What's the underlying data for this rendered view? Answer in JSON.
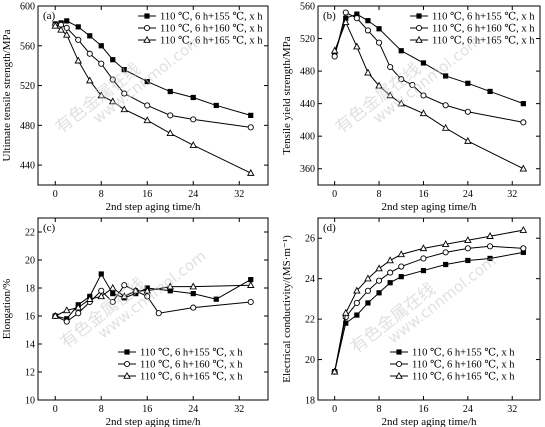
{
  "watermark": {
    "cn": "有色金属在线",
    "url": "www.cnnmol.com"
  },
  "chart_data": [
    {
      "type": "line",
      "panel_label": "(a)",
      "xlabel": "2nd step aging time/h",
      "ylabel": "Ultimate tensile strength/MPa",
      "xlim": [
        -3,
        37
      ],
      "ylim": [
        420,
        600
      ],
      "xticks": [
        0,
        8,
        16,
        24,
        32
      ],
      "yticks": [
        440,
        480,
        520,
        560,
        600
      ],
      "legend_position": "top-right",
      "series": [
        {
          "name": "110 ℃, 6 h+155 ℃, x h",
          "marker": "square",
          "x": [
            0,
            1,
            2,
            4,
            6,
            8,
            10,
            12,
            16,
            20,
            24,
            28,
            34
          ],
          "y": [
            582,
            583,
            585,
            579,
            570,
            560,
            546,
            536,
            524,
            514,
            508,
            500,
            490
          ]
        },
        {
          "name": "110 ℃, 6 h+160 ℃, x h",
          "marker": "circle",
          "x": [
            0,
            1,
            2,
            4,
            6,
            8,
            10,
            12,
            16,
            20,
            24,
            34
          ],
          "y": [
            581,
            581,
            578,
            566,
            552,
            542,
            526,
            512,
            500,
            490,
            486,
            478
          ]
        },
        {
          "name": "110 ℃, 6 h+165 ℃, x h",
          "marker": "triangle",
          "x": [
            0,
            1,
            2,
            4,
            6,
            8,
            10,
            12,
            16,
            20,
            24,
            34
          ],
          "y": [
            580,
            576,
            571,
            545,
            525,
            510,
            504,
            496,
            485,
            472,
            460,
            432
          ]
        }
      ]
    },
    {
      "type": "line",
      "panel_label": "(b)",
      "xlabel": "2nd step aging time/h",
      "ylabel": "Tensile yield strength/MPa",
      "xlim": [
        -3,
        37
      ],
      "ylim": [
        340,
        560
      ],
      "xticks": [
        0,
        8,
        16,
        24,
        32
      ],
      "yticks": [
        360,
        400,
        440,
        480,
        520,
        560
      ],
      "legend_position": "top-right",
      "series": [
        {
          "name": "110 ℃, 6 h+155 ℃, x h",
          "marker": "square",
          "x": [
            0,
            2,
            4,
            6,
            8,
            12,
            16,
            20,
            24,
            28,
            34
          ],
          "y": [
            500,
            545,
            550,
            542,
            532,
            505,
            490,
            474,
            465,
            455,
            440
          ]
        },
        {
          "name": "110 ℃, 6 h+160 ℃, x h",
          "marker": "circle",
          "x": [
            0,
            2,
            4,
            6,
            8,
            10,
            12,
            14,
            16,
            20,
            24,
            34
          ],
          "y": [
            498,
            552,
            545,
            530,
            515,
            485,
            470,
            463,
            450,
            438,
            430,
            417
          ]
        },
        {
          "name": "110 ℃, 6 h+165 ℃, x h",
          "marker": "triangle",
          "x": [
            0,
            2,
            4,
            6,
            8,
            10,
            12,
            16,
            20,
            24,
            34
          ],
          "y": [
            505,
            540,
            510,
            478,
            462,
            450,
            440,
            428,
            410,
            394,
            360
          ]
        }
      ]
    },
    {
      "type": "line",
      "panel_label": "(c)",
      "xlabel": "2nd step aging time/h",
      "ylabel": "Elongation/%",
      "xlim": [
        -3,
        37
      ],
      "ylim": [
        10,
        23
      ],
      "xticks": [
        0,
        8,
        16,
        24,
        32
      ],
      "yticks": [
        10,
        12,
        14,
        16,
        18,
        20,
        22
      ],
      "legend_position": "bottom-right",
      "series": [
        {
          "name": "110 ℃, 6 h+155 ℃, x h",
          "marker": "square",
          "x": [
            0,
            2,
            4,
            6,
            8,
            10,
            12,
            14,
            16,
            20,
            24,
            28,
            34
          ],
          "y": [
            16.0,
            15.8,
            16.8,
            17.4,
            19.0,
            17.6,
            17.3,
            17.6,
            18.0,
            17.8,
            17.6,
            17.2,
            18.6
          ]
        },
        {
          "name": "110 ℃, 6 h+160 ℃, x h",
          "marker": "circle",
          "x": [
            0,
            2,
            4,
            6,
            8,
            10,
            12,
            14,
            16,
            18,
            24,
            34
          ],
          "y": [
            16.0,
            15.6,
            16.2,
            17.0,
            17.8,
            17.0,
            18.2,
            17.8,
            17.4,
            16.2,
            16.6,
            17.0
          ]
        },
        {
          "name": "110 ℃, 6 h+165 ℃, x h",
          "marker": "triangle",
          "x": [
            0,
            2,
            4,
            6,
            8,
            10,
            12,
            14,
            16,
            20,
            24,
            34
          ],
          "y": [
            16.0,
            16.4,
            16.6,
            17.2,
            17.4,
            18.0,
            17.4,
            17.8,
            17.8,
            18.1,
            18.1,
            18.2
          ]
        }
      ]
    },
    {
      "type": "line",
      "panel_label": "(d)",
      "xlabel": "2nd step aging time/h",
      "ylabel": "Electrical conductivity/(MS·m⁻¹)",
      "xlim": [
        -3,
        37
      ],
      "ylim": [
        18,
        27
      ],
      "xticks": [
        0,
        8,
        16,
        24,
        32
      ],
      "yticks": [
        18,
        20,
        22,
        24,
        26
      ],
      "legend_position": "bottom-right",
      "series": [
        {
          "name": "110 ℃, 6 h+155 ℃, x h",
          "marker": "square",
          "x": [
            0,
            2,
            4,
            6,
            8,
            10,
            12,
            16,
            20,
            24,
            28,
            34
          ],
          "y": [
            19.4,
            21.8,
            22.2,
            22.8,
            23.3,
            23.8,
            24.1,
            24.4,
            24.7,
            24.9,
            25.0,
            25.3
          ]
        },
        {
          "name": "110 ℃, 6 h+160 ℃, x h",
          "marker": "circle",
          "x": [
            0,
            2,
            4,
            6,
            8,
            10,
            12,
            16,
            20,
            24,
            28,
            34
          ],
          "y": [
            19.4,
            22.1,
            22.8,
            23.4,
            23.9,
            24.3,
            24.6,
            25.0,
            25.3,
            25.5,
            25.6,
            25.5
          ]
        },
        {
          "name": "110 ℃, 6 h+165 ℃, x h",
          "marker": "triangle",
          "x": [
            0,
            2,
            4,
            6,
            8,
            10,
            12,
            16,
            20,
            24,
            28,
            34
          ],
          "y": [
            19.4,
            22.3,
            23.4,
            24.0,
            24.5,
            24.9,
            25.2,
            25.5,
            25.7,
            25.9,
            26.1,
            26.4
          ]
        }
      ]
    }
  ]
}
